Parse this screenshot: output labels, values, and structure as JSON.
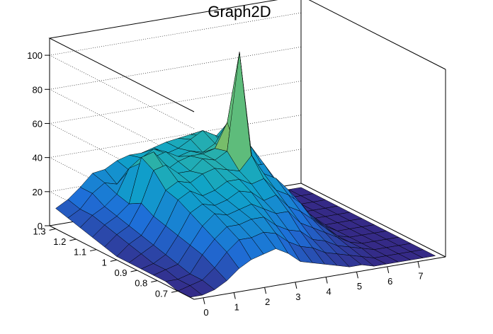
{
  "chart_data": {
    "type": "surface",
    "title": "Graph2D",
    "x_ticks": [
      "0",
      "1",
      "2",
      "3",
      "4",
      "5",
      "6",
      "7"
    ],
    "y_ticks": [
      "0.7",
      "0.8",
      "0.9",
      "1",
      "1.1",
      "1.2",
      "1.3"
    ],
    "z_ticks": [
      "0",
      "20",
      "40",
      "60",
      "80",
      "100"
    ],
    "xlim": [
      -0.3,
      7.9
    ],
    "ylim": [
      0.62,
      1.33
    ],
    "zlim": [
      0,
      110
    ],
    "grid": true,
    "colormap": [
      "#352a87",
      "#1e6fd8",
      "#0fa3c9",
      "#40bc8f",
      "#a8bd4a",
      "#f6c83a",
      "#f9fb0e"
    ],
    "surface_x": [
      -0.3,
      0.1,
      0.5,
      0.9,
      1.3,
      1.7,
      2.1,
      2.5,
      2.9,
      3.3,
      3.7,
      4.1,
      4.5,
      4.9,
      5.3,
      5.7,
      6.1,
      6.5,
      6.9,
      7.3,
      7.7
    ],
    "surface_y": [
      1.3,
      1.24,
      1.18,
      1.12,
      1.06,
      1.0,
      0.94,
      0.88,
      0.82,
      0.76,
      0.7,
      0.64
    ],
    "surface_z": [
      [
        12,
        16,
        22,
        29,
        30,
        34,
        36,
        36,
        38,
        40,
        41,
        42,
        40,
        38,
        45,
        30,
        22,
        0,
        0,
        0,
        0
      ],
      [
        10,
        14,
        22,
        27,
        25,
        32,
        38,
        42,
        38,
        40,
        44,
        48,
        44,
        40,
        44,
        28,
        18,
        0,
        0,
        0,
        0
      ],
      [
        8,
        14,
        18,
        24,
        38,
        40,
        42,
        44,
        40,
        42,
        40,
        44,
        40,
        36,
        38,
        24,
        12,
        0,
        0,
        0,
        0
      ],
      [
        6,
        12,
        16,
        22,
        48,
        50,
        38,
        42,
        44,
        44,
        46,
        60,
        38,
        32,
        32,
        20,
        10,
        0,
        0,
        0,
        0
      ],
      [
        4,
        10,
        14,
        26,
        44,
        46,
        40,
        40,
        46,
        44,
        48,
        105,
        40,
        30,
        26,
        16,
        8,
        0,
        0,
        0,
        0
      ],
      [
        2,
        8,
        12,
        22,
        36,
        40,
        38,
        42,
        44,
        42,
        40,
        48,
        36,
        32,
        24,
        12,
        6,
        0,
        0,
        0,
        0
      ],
      [
        2,
        6,
        10,
        20,
        34,
        38,
        34,
        36,
        40,
        40,
        36,
        38,
        30,
        26,
        20,
        10,
        4,
        0,
        0,
        0,
        0
      ],
      [
        2,
        4,
        8,
        18,
        30,
        34,
        32,
        34,
        38,
        36,
        30,
        32,
        24,
        20,
        14,
        8,
        2,
        0,
        0,
        0,
        0
      ],
      [
        2,
        4,
        6,
        16,
        26,
        32,
        30,
        32,
        34,
        30,
        26,
        26,
        18,
        14,
        10,
        6,
        2,
        0,
        0,
        0,
        0
      ],
      [
        2,
        2,
        4,
        14,
        22,
        28,
        28,
        30,
        30,
        24,
        20,
        18,
        12,
        10,
        6,
        4,
        2,
        0,
        0,
        0,
        0
      ],
      [
        0,
        2,
        4,
        10,
        18,
        24,
        24,
        26,
        24,
        18,
        14,
        12,
        8,
        6,
        4,
        2,
        0,
        0,
        0,
        0,
        0
      ],
      [
        0,
        0,
        2,
        6,
        12,
        16,
        18,
        20,
        16,
        10,
        8,
        6,
        4,
        2,
        2,
        0,
        0,
        0,
        0,
        0,
        0
      ]
    ]
  }
}
